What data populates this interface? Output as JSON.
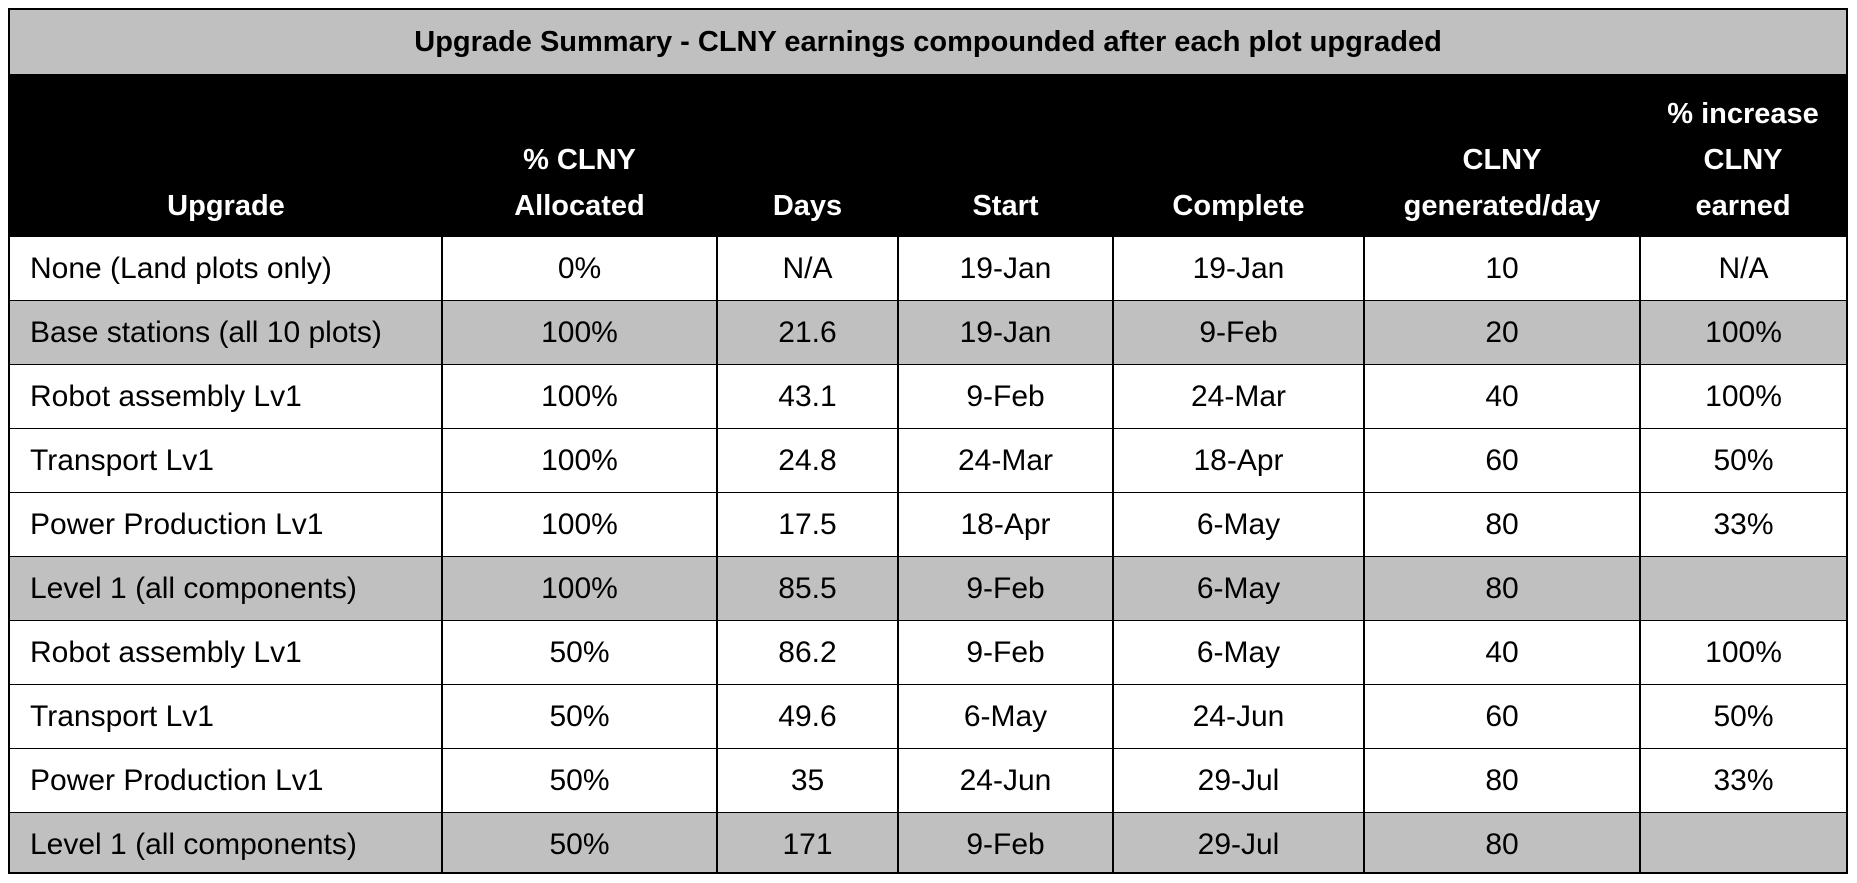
{
  "title": "Upgrade Summary - CLNY earnings compounded after each plot upgraded",
  "colors": {
    "title_bg": "#c0c0c0",
    "header_bg": "#000000",
    "header_text": "#ffffff",
    "shaded_row_bg": "#c0c0c0",
    "row_bg": "#ffffff"
  },
  "headers": [
    [
      "Upgrade"
    ],
    [
      "% CLNY",
      "Allocated"
    ],
    [
      "Days"
    ],
    [
      "Start"
    ],
    [
      "Complete"
    ],
    [
      "CLNY",
      "generated/day"
    ],
    [
      "% increase",
      "CLNY",
      "earned"
    ]
  ],
  "rows": [
    {
      "shaded": false,
      "cells": [
        "None (Land plots only)",
        "0%",
        "N/A",
        "19-Jan",
        "19-Jan",
        "10",
        "N/A"
      ]
    },
    {
      "shaded": true,
      "cells": [
        "Base stations (all 10 plots)",
        "100%",
        "21.6",
        "19-Jan",
        "9-Feb",
        "20",
        "100%"
      ]
    },
    {
      "shaded": false,
      "cells": [
        "Robot assembly Lv1",
        "100%",
        "43.1",
        "9-Feb",
        "24-Mar",
        "40",
        "100%"
      ]
    },
    {
      "shaded": false,
      "cells": [
        "Transport Lv1",
        "100%",
        "24.8",
        "24-Mar",
        "18-Apr",
        "60",
        "50%"
      ]
    },
    {
      "shaded": false,
      "cells": [
        "Power Production Lv1",
        "100%",
        "17.5",
        "18-Apr",
        "6-May",
        "80",
        "33%"
      ]
    },
    {
      "shaded": true,
      "cells": [
        "Level 1 (all components)",
        "100%",
        "85.5",
        "9-Feb",
        "6-May",
        "80",
        ""
      ]
    },
    {
      "shaded": false,
      "cells": [
        "Robot assembly Lv1",
        "50%",
        "86.2",
        "9-Feb",
        "6-May",
        "40",
        "100%"
      ]
    },
    {
      "shaded": false,
      "cells": [
        "Transport Lv1",
        "50%",
        "49.6",
        "6-May",
        "24-Jun",
        "60",
        "50%"
      ]
    },
    {
      "shaded": false,
      "cells": [
        "Power Production Lv1",
        "50%",
        "35",
        "24-Jun",
        "29-Jul",
        "80",
        "33%"
      ]
    },
    {
      "shaded": true,
      "cells": [
        "Level 1 (all components)",
        "50%",
        "171",
        "9-Feb",
        "29-Jul",
        "80",
        ""
      ]
    }
  ]
}
